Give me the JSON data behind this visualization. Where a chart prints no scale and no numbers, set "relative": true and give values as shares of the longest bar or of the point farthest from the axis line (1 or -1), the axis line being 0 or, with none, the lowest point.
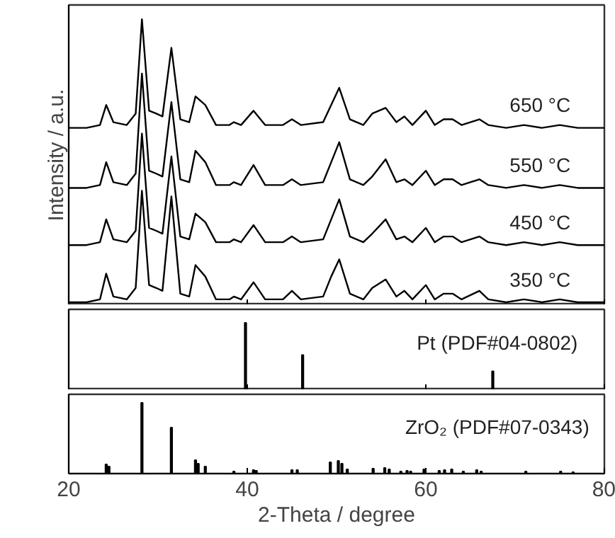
{
  "chart_data": [
    {
      "type": "line",
      "relative": true,
      "ylabel": "Intensity / a.u.",
      "xlim": [
        20,
        80
      ],
      "xticks": [
        20,
        40,
        60,
        80
      ],
      "tick_labels": false,
      "line_style": "solid",
      "marker": "none",
      "x": [
        20,
        22,
        23.5,
        24.2,
        25,
        26.5,
        27.5,
        28.2,
        29,
        29.8,
        30.5,
        31.5,
        32.5,
        33.5,
        34.2,
        35.3,
        36.5,
        38,
        38.5,
        39.3,
        40.7,
        42,
        44,
        45,
        46,
        48.5,
        49.4,
        50.3,
        51.5,
        53,
        54,
        55.5,
        56.7,
        57.6,
        58.5,
        60,
        61,
        62,
        63,
        64,
        66,
        67,
        69,
        71,
        73,
        75,
        77,
        80
      ],
      "series": [
        {
          "name": "650 °C",
          "color": "#000000",
          "values": [
            0.62,
            0.62,
            0.63,
            0.7,
            0.64,
            0.63,
            0.67,
            1.0,
            0.68,
            0.67,
            0.66,
            0.9,
            0.65,
            0.64,
            0.73,
            0.7,
            0.63,
            0.63,
            0.64,
            0.63,
            0.68,
            0.63,
            0.63,
            0.65,
            0.63,
            0.64,
            0.7,
            0.76,
            0.65,
            0.63,
            0.67,
            0.69,
            0.64,
            0.66,
            0.63,
            0.68,
            0.63,
            0.65,
            0.65,
            0.63,
            0.65,
            0.63,
            0.62,
            0.63,
            0.62,
            0.63,
            0.62,
            0.62
          ]
        },
        {
          "name": "550 °C",
          "color": "#000000",
          "values": [
            0.41,
            0.41,
            0.42,
            0.5,
            0.43,
            0.42,
            0.46,
            0.81,
            0.47,
            0.46,
            0.45,
            0.71,
            0.44,
            0.43,
            0.54,
            0.5,
            0.42,
            0.42,
            0.43,
            0.42,
            0.49,
            0.42,
            0.42,
            0.44,
            0.42,
            0.43,
            0.5,
            0.57,
            0.44,
            0.42,
            0.45,
            0.51,
            0.43,
            0.44,
            0.42,
            0.47,
            0.42,
            0.44,
            0.44,
            0.42,
            0.44,
            0.42,
            0.41,
            0.42,
            0.41,
            0.42,
            0.41,
            0.41
          ]
        },
        {
          "name": "450 °C",
          "color": "#000000",
          "values": [
            0.21,
            0.21,
            0.22,
            0.3,
            0.23,
            0.22,
            0.26,
            0.6,
            0.27,
            0.26,
            0.25,
            0.52,
            0.24,
            0.23,
            0.32,
            0.29,
            0.22,
            0.22,
            0.23,
            0.22,
            0.28,
            0.22,
            0.22,
            0.24,
            0.22,
            0.23,
            0.3,
            0.37,
            0.24,
            0.22,
            0.25,
            0.3,
            0.23,
            0.24,
            0.22,
            0.27,
            0.22,
            0.24,
            0.24,
            0.22,
            0.24,
            0.22,
            0.21,
            0.22,
            0.21,
            0.22,
            0.21,
            0.21
          ]
        },
        {
          "name": "350 °C",
          "color": "#000000",
          "values": [
            0.01,
            0.01,
            0.02,
            0.11,
            0.03,
            0.02,
            0.06,
            0.4,
            0.07,
            0.06,
            0.05,
            0.38,
            0.04,
            0.03,
            0.14,
            0.1,
            0.02,
            0.02,
            0.03,
            0.02,
            0.08,
            0.02,
            0.02,
            0.05,
            0.02,
            0.03,
            0.1,
            0.16,
            0.04,
            0.02,
            0.06,
            0.09,
            0.03,
            0.05,
            0.02,
            0.07,
            0.02,
            0.04,
            0.04,
            0.02,
            0.05,
            0.02,
            0.01,
            0.02,
            0.01,
            0.02,
            0.01,
            0.01
          ]
        }
      ]
    },
    {
      "type": "bar",
      "relative": true,
      "xlim": [
        20,
        80
      ],
      "xticks": [
        20,
        40,
        60,
        80
      ],
      "tick_labels": false,
      "annotations": [
        "Pt (PDF#04-0802)"
      ],
      "x": [
        39.8,
        46.2,
        67.5
      ],
      "values": [
        1.0,
        0.52,
        0.28
      ],
      "color": "#000000"
    },
    {
      "type": "bar",
      "relative": true,
      "xlim": [
        20,
        80
      ],
      "xticks": [
        20,
        40,
        60,
        80
      ],
      "tick_labels": "x",
      "xlabel": "2-Theta / degree",
      "annotations": [
        "ZrO₂ (PDF#07-0343)"
      ],
      "x": [
        24.2,
        24.5,
        28.2,
        31.5,
        34.2,
        34.5,
        35.3,
        38.5,
        40.7,
        41,
        45,
        45.6,
        49.3,
        50.2,
        50.6,
        51.2,
        54.1,
        55.4,
        55.9,
        57.2,
        57.9,
        58.3,
        59.8,
        61.5,
        62.1,
        62.9,
        64.2,
        65.7,
        66.2,
        71.2,
        75.1,
        76.5
      ],
      "values": [
        0.13,
        0.1,
        1.0,
        0.65,
        0.19,
        0.14,
        0.1,
        0.03,
        0.05,
        0.04,
        0.05,
        0.05,
        0.16,
        0.18,
        0.14,
        0.06,
        0.07,
        0.08,
        0.06,
        0.03,
        0.04,
        0.03,
        0.06,
        0.04,
        0.05,
        0.06,
        0.03,
        0.05,
        0.03,
        0.03,
        0.03,
        0.02
      ],
      "color": "#000000"
    }
  ]
}
